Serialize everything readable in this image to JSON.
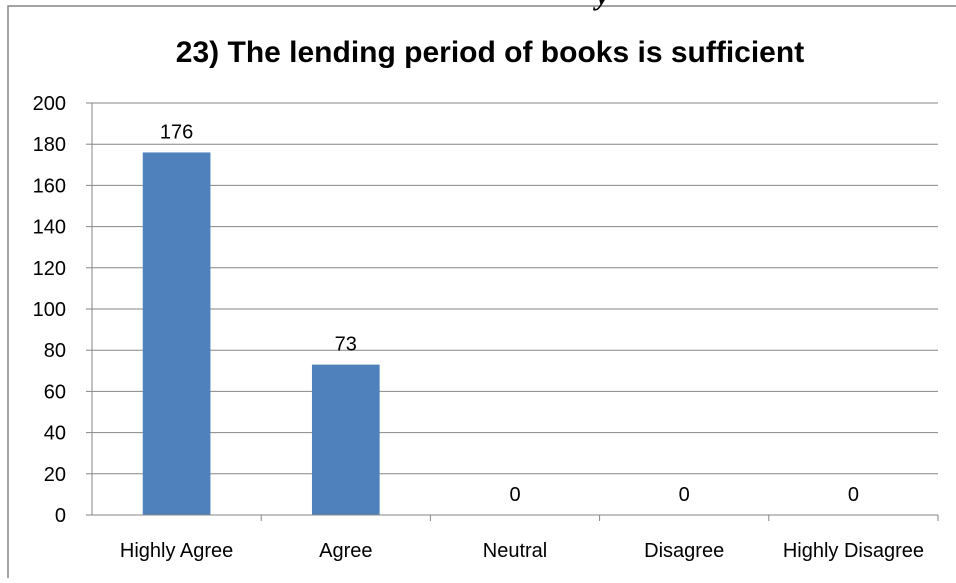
{
  "header_fragment": "y",
  "chart_data": {
    "type": "bar",
    "title": "23) The lending period of books is sufficient",
    "xlabel": "",
    "ylabel": "",
    "categories": [
      "Highly Agree",
      "Agree",
      "Neutral",
      "Disagree",
      "Highly Disagree"
    ],
    "values": [
      176,
      73,
      0,
      0,
      0
    ],
    "data_labels": [
      "176",
      "73",
      "0",
      "0",
      "0"
    ],
    "ylim": [
      0,
      200
    ],
    "y_ticks": [
      "0",
      "20",
      "40",
      "60",
      "80",
      "100",
      "120",
      "140",
      "160",
      "180",
      "200"
    ],
    "grid": true,
    "legend": "none",
    "bar_color": "#4F81BD",
    "grid_color": "#868686",
    "border_color": "#868686"
  }
}
